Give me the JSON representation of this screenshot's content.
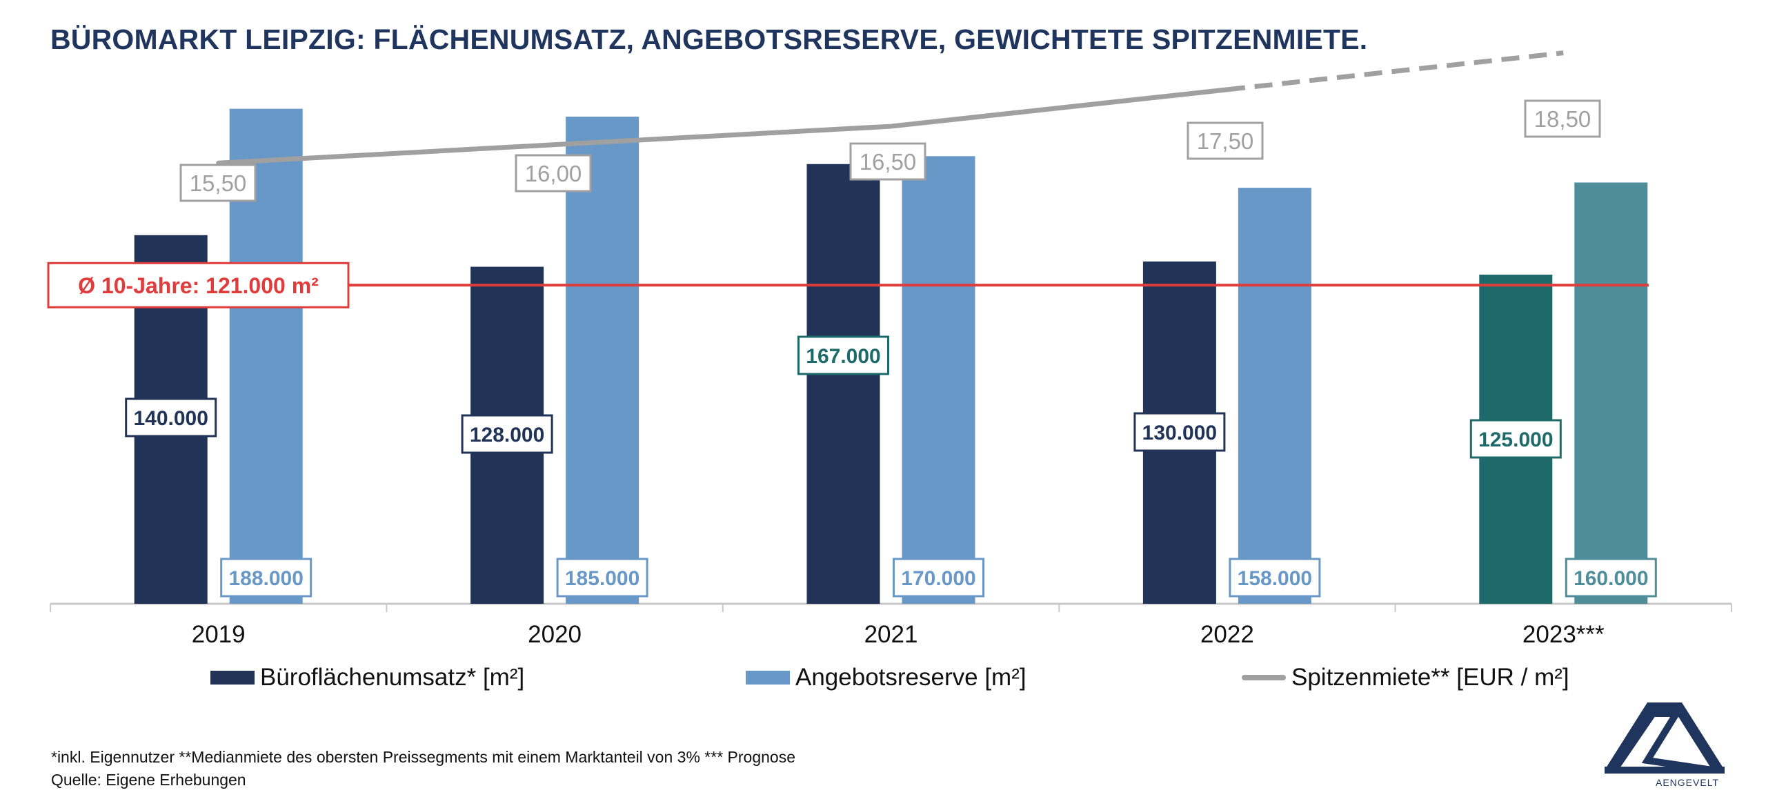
{
  "title": "BÜROMARKT LEIPZIG: FLÄCHENUMSATZ, ANGEBOTSRESERVE, GEWICHTETE SPITZENMIETE.",
  "chart_data": {
    "type": "bar",
    "categories": [
      "2019",
      "2020",
      "2021",
      "2022",
      "2023***"
    ],
    "series": [
      {
        "name": "Büroflächenumsatz* [m²]",
        "values": [
          140000,
          128000,
          167000,
          130000,
          125000
        ],
        "labels": [
          "140.000",
          "128.000",
          "167.000",
          "130.000",
          "125.000"
        ],
        "colors": [
          "#213457",
          "#213457",
          "#213457",
          "#213457",
          "#1e6a6a"
        ],
        "label_colors": [
          "#213457",
          "#213457",
          "#1e6a6a",
          "#213457",
          "#1e6a6a"
        ]
      },
      {
        "name": "Angebotsreserve [m²]",
        "values": [
          188000,
          185000,
          170000,
          158000,
          160000
        ],
        "labels": [
          "188.000",
          "185.000",
          "170.000",
          "158.000",
          "160.000"
        ],
        "colors": [
          "#6898c8",
          "#6898c8",
          "#6898c8",
          "#6898c8",
          "#4e8e9a"
        ],
        "label_colors": [
          "#6898c8",
          "#6898c8",
          "#6898c8",
          "#6898c8",
          "#4e8e9a"
        ]
      },
      {
        "name": "Spitzenmiete** [EUR / m²]",
        "type": "line",
        "values": [
          15.5,
          16.0,
          16.5,
          17.5,
          18.5
        ],
        "labels": [
          "15,50",
          "16,00",
          "16,50",
          "17,50",
          "18,50"
        ],
        "color": "#a0a0a0",
        "dashed_from_index": 3
      }
    ],
    "reference_line": {
      "label": "Ø 10-Jahre: 121.000 m²",
      "value": 121000,
      "color": "#e03c3c"
    },
    "ylim_bars": [
      0,
      190000
    ],
    "ylim_line": [
      3.5,
      19
    ],
    "colors": {
      "title": "#1f355e",
      "axis": "#c8c8c8",
      "text": "#111111"
    }
  },
  "legend": [
    {
      "label": "Büroflächenumsatz* [m²]",
      "color": "#213457",
      "kind": "bar"
    },
    {
      "label": "Angebotsreserve [m²]",
      "color": "#6898c8",
      "kind": "bar"
    },
    {
      "label": "Spitzenmiete** [EUR / m²]",
      "color": "#a0a0a0",
      "kind": "line"
    }
  ],
  "footnote": {
    "line1": "*inkl. Eigennutzer **Medianmiete des obersten Preissegments mit einem Marktanteil von 3% *** Prognose",
    "line2": "Quelle: Eigene Erhebungen"
  },
  "logo": {
    "text": "AENGEVELT",
    "icon": "aengevelt-logo-icon"
  }
}
